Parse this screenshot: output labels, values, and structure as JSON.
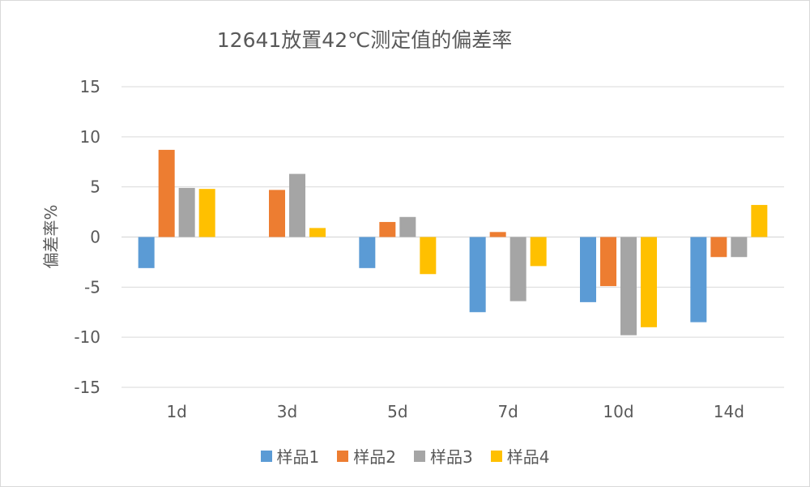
{
  "chart_data": {
    "type": "bar",
    "title": "12641放置42℃测定值的偏差率",
    "xlabel": "",
    "ylabel": "偏差率%",
    "ylim": [
      -15,
      15
    ],
    "yticks": [
      15,
      10,
      5,
      0,
      -5,
      -10,
      -15
    ],
    "categories": [
      "1d",
      "3d",
      "5d",
      "7d",
      "10d",
      "14d"
    ],
    "series": [
      {
        "name": "样品1",
        "color": "#5B9BD5",
        "values": [
          -3.1,
          0,
          -3.1,
          -7.5,
          -6.5,
          -8.5
        ]
      },
      {
        "name": "样品2",
        "color": "#ED7D31",
        "values": [
          8.7,
          4.7,
          1.5,
          0.5,
          -4.9,
          -2.0
        ]
      },
      {
        "name": "样品3",
        "color": "#A5A5A5",
        "values": [
          4.9,
          6.3,
          2.0,
          -6.4,
          -9.8,
          -2.0
        ]
      },
      {
        "name": "样品4",
        "color": "#FFC000",
        "values": [
          4.8,
          0.9,
          -3.7,
          -2.9,
          -9.0,
          3.2
        ]
      }
    ],
    "grid": true,
    "legend_position": "bottom"
  }
}
